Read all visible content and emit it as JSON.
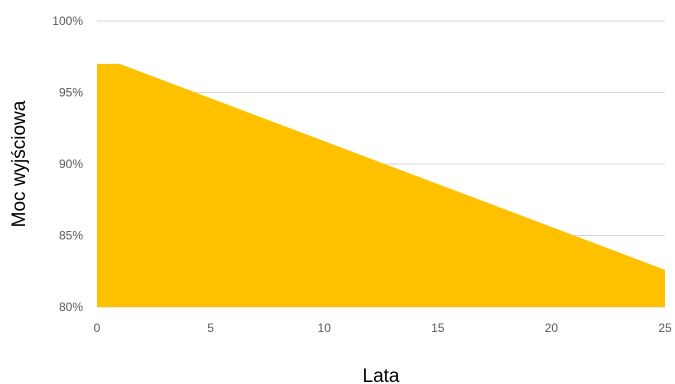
{
  "chart_data": {
    "type": "area",
    "xlabel": "Lata",
    "ylabel": "Moc wyjściowa",
    "x": [
      0,
      1,
      25
    ],
    "y": [
      97,
      97,
      82.6
    ],
    "xlim": [
      0,
      25
    ],
    "ylim": [
      80,
      100
    ],
    "x_ticks": [
      "0",
      "5",
      "10",
      "15",
      "20",
      "25"
    ],
    "y_ticks": [
      "80%",
      "85%",
      "90%",
      "95%",
      "100%"
    ],
    "grid": "horizontal",
    "colors": {
      "fill": "#FFC000",
      "grid": "#D9D9D9",
      "tick_text": "#595959"
    }
  }
}
